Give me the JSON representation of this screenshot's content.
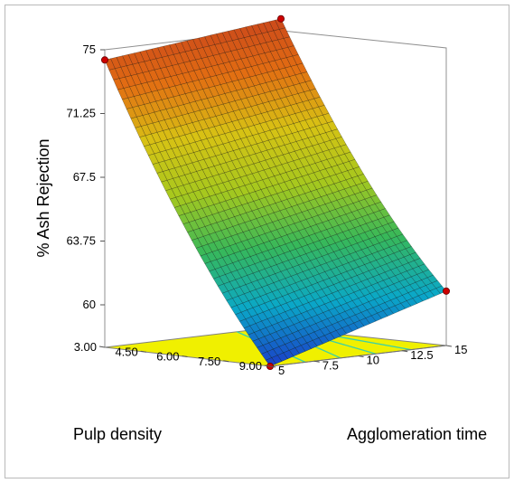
{
  "chart_data": {
    "type": "surface3d",
    "title": "",
    "zlabel": "% Ash Rejection",
    "xlabel": "Agglomeration time",
    "ylabel": "Pulp density",
    "x_ticks": [
      "5",
      "7.5",
      "10",
      "12.5",
      "15"
    ],
    "y_ticks": [
      "3.00",
      "4.50",
      "6.00",
      "7.50",
      "9.00"
    ],
    "z_ticks": [
      "60",
      "63.75",
      "67.5",
      "71.25",
      "75"
    ],
    "x_range": [
      5,
      15
    ],
    "y_range": [
      3,
      9
    ],
    "z_range": [
      57.5,
      75
    ],
    "corner_points": [
      {
        "agglomeration_time": 5,
        "pulp_density": 3,
        "ash_rejection": 74.4
      },
      {
        "agglomeration_time": 15,
        "pulp_density": 3,
        "ash_rejection": 75.6
      },
      {
        "agglomeration_time": 15,
        "pulp_density": 9,
        "ash_rejection": 60.7
      },
      {
        "agglomeration_time": 5,
        "pulp_density": 9,
        "ash_rejection": 57.5
      }
    ],
    "colormap": [
      "#1a3ec8",
      "#0aa8c8",
      "#37b85a",
      "#a6c81e",
      "#d8c214",
      "#e26d12",
      "#c8431c"
    ],
    "floor_color": "#f0f000",
    "floor_contour_color": "#3ad0a8",
    "design_point_color": "#cc0000"
  }
}
